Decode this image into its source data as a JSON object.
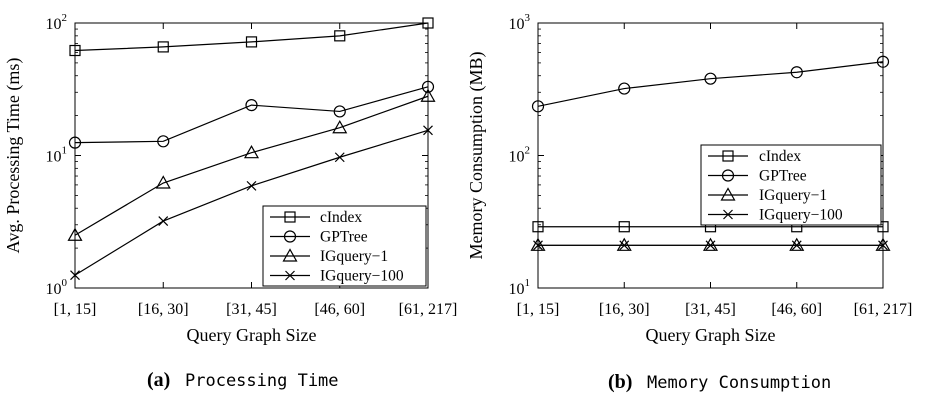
{
  "chart_data": [
    {
      "type": "line",
      "title": "",
      "xlabel": "Query Graph Size",
      "ylabel": "Avg. Processing Time (ms)",
      "yscale": "log",
      "ylim": [
        1,
        100
      ],
      "yticks": [
        {
          "value": 1,
          "base": "10",
          "exp": "0"
        },
        {
          "value": 10,
          "base": "10",
          "exp": "1"
        },
        {
          "value": 100,
          "base": "10",
          "exp": "2"
        }
      ],
      "categories": [
        "[1, 15]",
        "[16, 30]",
        "[31, 45]",
        "[46, 60]",
        "[61, 217]"
      ],
      "legend_position": "bottom-right",
      "series": [
        {
          "name": "cIndex",
          "marker": "square",
          "values": [
            62,
            66,
            72,
            80,
            100
          ]
        },
        {
          "name": "GPTree",
          "marker": "circle",
          "values": [
            12.5,
            12.8,
            24,
            21.5,
            33
          ]
        },
        {
          "name": "IGquery−1",
          "marker": "triangle",
          "values": [
            2.5,
            6.2,
            10.5,
            16.2,
            28
          ]
        },
        {
          "name": "IGquery−100",
          "marker": "x",
          "values": [
            1.25,
            3.2,
            5.9,
            9.7,
            15.5
          ]
        }
      ]
    },
    {
      "type": "line",
      "title": "",
      "xlabel": "Query Graph Size",
      "ylabel": "Memory Consumption (MB)",
      "yscale": "log",
      "ylim": [
        10,
        1000
      ],
      "yticks": [
        {
          "value": 10,
          "base": "10",
          "exp": "1"
        },
        {
          "value": 100,
          "base": "10",
          "exp": "2"
        },
        {
          "value": 1000,
          "base": "10",
          "exp": "3"
        }
      ],
      "categories": [
        "[1, 15]",
        "[16, 30]",
        "[31, 45]",
        "[46, 60]",
        "[61, 217]"
      ],
      "legend_position": "top-right",
      "series": [
        {
          "name": "cIndex",
          "marker": "square",
          "values": [
            29,
            29,
            29,
            29,
            29
          ]
        },
        {
          "name": "GPTree",
          "marker": "circle",
          "values": [
            235,
            320,
            380,
            425,
            510
          ]
        },
        {
          "name": "IGquery−1",
          "marker": "triangle",
          "values": [
            21,
            21,
            21,
            21,
            21
          ]
        },
        {
          "name": "IGquery−100",
          "marker": "x",
          "values": [
            21,
            21,
            21,
            21,
            21
          ]
        }
      ]
    }
  ],
  "captions": [
    {
      "letter": "(a)",
      "text": "Processing Time"
    },
    {
      "letter": "(b)",
      "text": "Memory Consumption"
    }
  ]
}
